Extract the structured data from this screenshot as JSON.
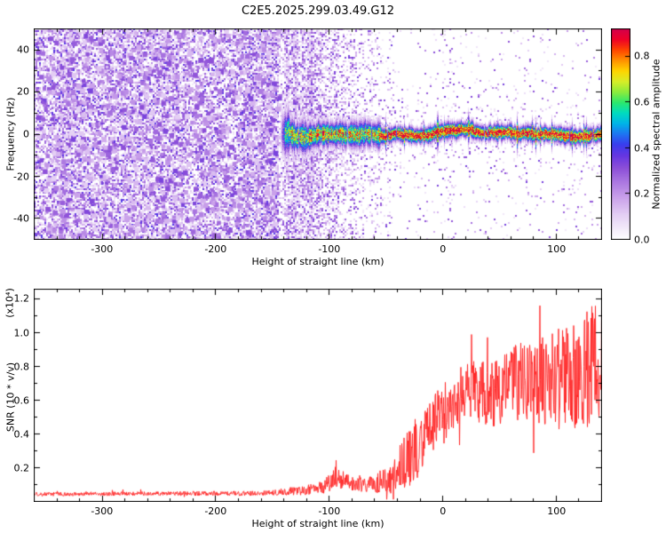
{
  "title": "C2E5.2025.299.03.49.G12",
  "chart_data": [
    {
      "type": "heatmap",
      "name": "spectrogram",
      "xlabel": "Height of straight line (km)",
      "ylabel": "Frequency (Hz)",
      "xlim": [
        -360,
        140
      ],
      "ylim": [
        -50,
        50
      ],
      "xticks": [
        -300,
        -200,
        -100,
        0,
        100
      ],
      "xticklabels": [
        "-300",
        "-200",
        "-100",
        "0",
        "100"
      ],
      "yticks": [
        -40,
        -20,
        0,
        20,
        40
      ],
      "yticklabels": [
        "-40",
        "-20",
        "0",
        "20",
        "40"
      ],
      "colorbar": {
        "label": "Normalized spectral amplitude",
        "range": [
          0,
          0.92
        ],
        "ticks": [
          0,
          0.2,
          0.4,
          0.6,
          0.8
        ],
        "ticklabels": [
          "0.0",
          "0.2",
          "0.4",
          "0.6",
          "0.8"
        ]
      },
      "colormap": [
        [
          0,
          "#ffffff"
        ],
        [
          0.05,
          "#f3ebfa"
        ],
        [
          0.12,
          "#e3cdf4"
        ],
        [
          0.2,
          "#c9a0ea"
        ],
        [
          0.28,
          "#a873e0"
        ],
        [
          0.34,
          "#8c4ed8"
        ],
        [
          0.4,
          "#6436e2"
        ],
        [
          0.45,
          "#3a3cee"
        ],
        [
          0.5,
          "#1e74f2"
        ],
        [
          0.55,
          "#00b4e8"
        ],
        [
          0.6,
          "#00dcc0"
        ],
        [
          0.65,
          "#2ce86c"
        ],
        [
          0.7,
          "#8cec3c"
        ],
        [
          0.75,
          "#d8ee28"
        ],
        [
          0.8,
          "#ffd400"
        ],
        [
          0.85,
          "#ff9000"
        ],
        [
          0.9,
          "#ff4400"
        ],
        [
          0.95,
          "#ee0028"
        ],
        [
          1,
          "#d4004c"
        ]
      ],
      "description": "Dense purple speckle noise fills all frequencies for heights below about -145 km; a narrow high-amplitude ridge near 0 Hz emerges at about -143 km and continues to the right edge, cyan/green cored until about -55 km then red/orange cored with rainbow halo; sparse purple speckle and vertical streaks between -145 and -40 km.",
      "render": {
        "seed": 1337,
        "dense_noise_until_km": -145,
        "signal_start_km": -143,
        "noise_clusters": [
          [
            -138,
            1.5,
            2
          ],
          [
            -131,
            2.2,
            2.5
          ],
          [
            -124,
            1.2,
            2
          ],
          [
            -117,
            2.6,
            3
          ],
          [
            -109,
            1.8,
            2
          ],
          [
            -102,
            1.2,
            2.5
          ],
          [
            -95,
            2.0,
            2
          ],
          [
            -88,
            1.0,
            2
          ],
          [
            -80,
            1.5,
            2.5
          ],
          [
            -72,
            0.8,
            2
          ],
          [
            -64,
            1.2,
            2
          ],
          [
            -56,
            0.7,
            2
          ],
          [
            -48,
            1.0,
            2
          ],
          [
            5,
            2.0,
            3
          ],
          [
            30,
            1.2,
            2
          ]
        ]
      }
    },
    {
      "type": "line",
      "name": "snr",
      "color": "#ff2222",
      "xlabel": "Height of straight line (km)",
      "ylabel": "SNR (10 * v/v)",
      "y_multiplier": "(x10⁴)",
      "xlim": [
        -360,
        140
      ],
      "ylim": [
        0,
        1.26
      ],
      "xticks": [
        -300,
        -200,
        -100,
        0,
        100
      ],
      "xticklabels": [
        "-300",
        "-200",
        "-100",
        "0",
        "100"
      ],
      "yticks": [
        0.2,
        0.4,
        0.6,
        0.8,
        1.0,
        1.2
      ],
      "yticklabels": [
        "0.2",
        "0.4",
        "0.6",
        "0.8",
        "1.0",
        "1.2"
      ],
      "seed": 4242,
      "description": "Noisy red SNR trace: flat near 0.05 below -150 km, small bump to ~0.25 near -95 km, sharp noisy rise from -45 km to ~0.6 at +10 km, then noisy plateau 0.6-0.8 with spikes up to 1.2 near the right edge.",
      "profile": [
        [
          -360,
          0.045,
          0.012
        ],
        [
          -250,
          0.05,
          0.012
        ],
        [
          -160,
          0.05,
          0.015
        ],
        [
          -140,
          0.06,
          0.02
        ],
        [
          -120,
          0.07,
          0.03
        ],
        [
          -105,
          0.09,
          0.04
        ],
        [
          -95,
          0.14,
          0.07
        ],
        [
          -85,
          0.12,
          0.05
        ],
        [
          -75,
          0.1,
          0.04
        ],
        [
          -65,
          0.11,
          0.05
        ],
        [
          -55,
          0.12,
          0.07
        ],
        [
          -45,
          0.15,
          0.1
        ],
        [
          -35,
          0.22,
          0.15
        ],
        [
          -28,
          0.28,
          0.18
        ],
        [
          -20,
          0.34,
          0.18
        ],
        [
          -12,
          0.4,
          0.18
        ],
        [
          -5,
          0.46,
          0.2
        ],
        [
          0,
          0.5,
          0.2
        ],
        [
          8,
          0.6,
          0.18
        ],
        [
          15,
          0.64,
          0.16
        ],
        [
          25,
          0.66,
          0.17
        ],
        [
          35,
          0.65,
          0.19
        ],
        [
          45,
          0.64,
          0.2
        ],
        [
          55,
          0.68,
          0.21
        ],
        [
          65,
          0.72,
          0.24
        ],
        [
          75,
          0.72,
          0.26
        ],
        [
          85,
          0.73,
          0.28
        ],
        [
          95,
          0.74,
          0.29
        ],
        [
          105,
          0.72,
          0.3
        ],
        [
          115,
          0.75,
          0.32
        ],
        [
          125,
          0.78,
          0.35
        ],
        [
          140,
          0.82,
          0.38
        ]
      ]
    }
  ]
}
